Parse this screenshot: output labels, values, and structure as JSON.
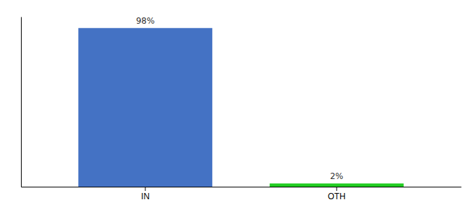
{
  "chart_data": {
    "type": "bar",
    "categories": [
      "IN",
      "OTH"
    ],
    "values": [
      98,
      2
    ],
    "value_labels": [
      "98%",
      "2%"
    ],
    "colors": [
      "#4472C4",
      "#22CC22"
    ],
    "ylim": [
      0,
      105
    ],
    "data_labels": true,
    "tick_labels": "x"
  }
}
